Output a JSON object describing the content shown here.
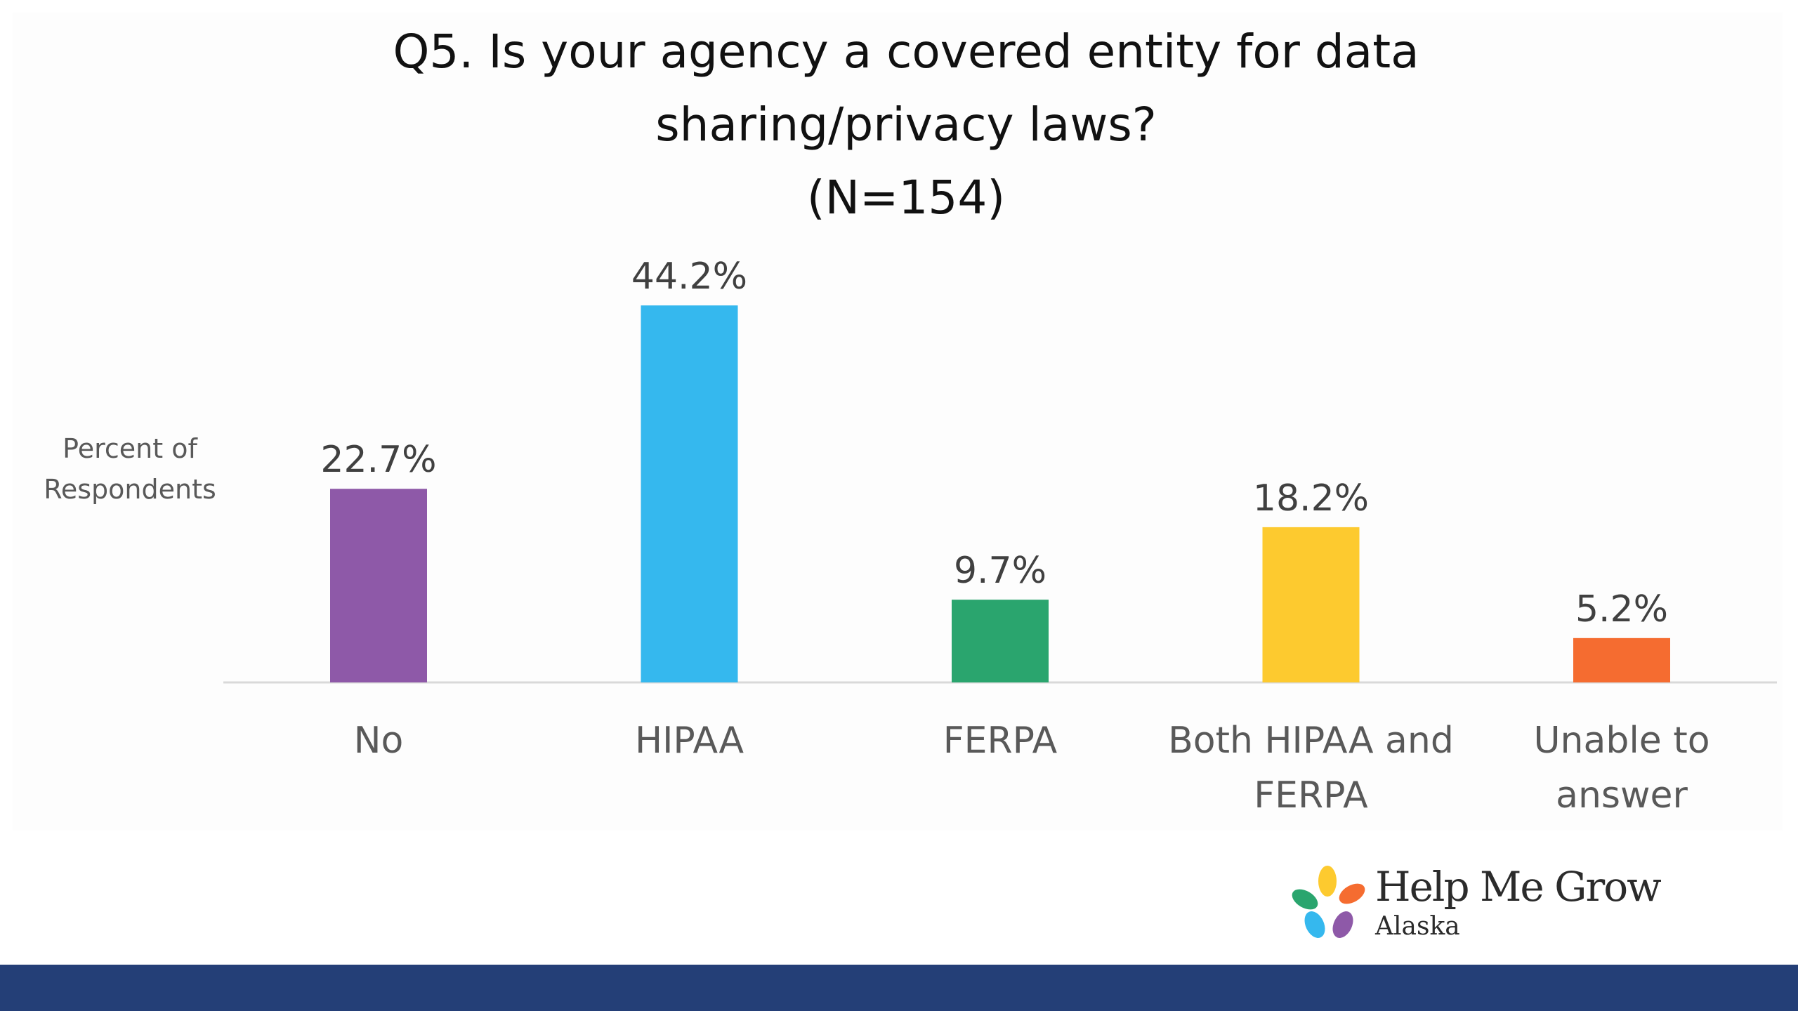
{
  "chart_data": {
    "type": "bar",
    "title_lines": [
      "Q5. Is your agency a covered entity for data",
      "sharing/privacy laws?",
      "(N=154)"
    ],
    "ylabel_lines": [
      "Percent of",
      "Respondents"
    ],
    "categories": [
      [
        "No"
      ],
      [
        "HIPAA"
      ],
      [
        "FERPA"
      ],
      [
        "Both HIPAA and",
        "FERPA"
      ],
      [
        "Unable to",
        "answer"
      ]
    ],
    "values": [
      22.7,
      44.2,
      9.7,
      18.2,
      5.2
    ],
    "data_labels": [
      "22.7%",
      "44.2%",
      "9.7%",
      "18.2%",
      "5.2%"
    ],
    "colors": [
      "#8e59a8",
      "#35b8ee",
      "#2aa56e",
      "#fdca2f",
      "#f56c30"
    ],
    "ylim": [
      0,
      50
    ],
    "grid": false,
    "legend": "none"
  },
  "logo": {
    "title": "Help Me Grow",
    "subtitle": "Alaska",
    "petal_colors": [
      "#fdca2f",
      "#f56c30",
      "#2aa56e",
      "#35b8ee",
      "#8e59a8"
    ]
  },
  "footer": {
    "color": "#243f77"
  }
}
